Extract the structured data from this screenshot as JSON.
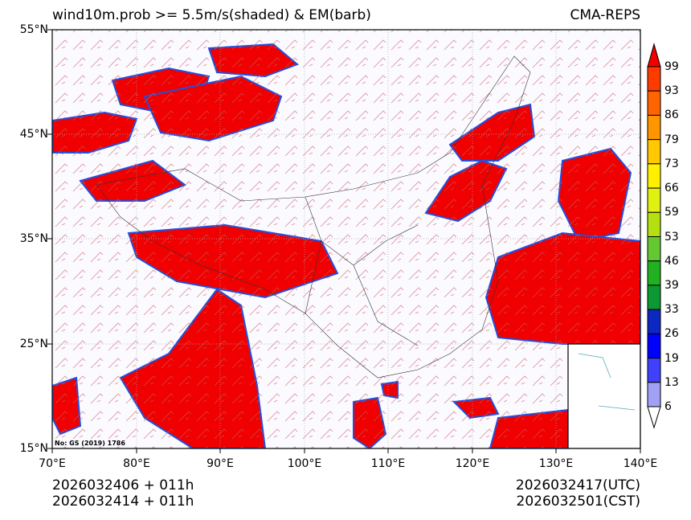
{
  "title_left": "wind10m.prob >= 5.5m/s(shaded) & EM(barb)",
  "title_right": "CMA-REPS",
  "map": {
    "lat_ticks": [
      "55°N",
      "45°N",
      "35°N",
      "25°N",
      "15°N"
    ],
    "lon_ticks": [
      "70°E",
      "80°E",
      "90°E",
      "100°E",
      "110°E",
      "120°E",
      "130°E",
      "140°E"
    ],
    "review_number": "No: GS (2019) 1786"
  },
  "colorbar": {
    "levels": [
      "99",
      "93",
      "86",
      "79",
      "73",
      "66",
      "59",
      "53",
      "46",
      "39",
      "33",
      "26",
      "19",
      "13",
      "6"
    ],
    "colors": [
      "#f00000",
      "#ff3c00",
      "#ff6400",
      "#ff9600",
      "#ffc800",
      "#fff000",
      "#e0f010",
      "#b4e010",
      "#64c832",
      "#20b020",
      "#0c9832",
      "#0c28c0",
      "#0000ff",
      "#4040ff",
      "#a0a0f4"
    ]
  },
  "footer": {
    "init_line1": "2026032406  +  011h",
    "init_line2": "2026032414  +  011h",
    "valid_utc": "2026032417(UTC)",
    "valid_cst": "2026032501(CST)"
  }
}
